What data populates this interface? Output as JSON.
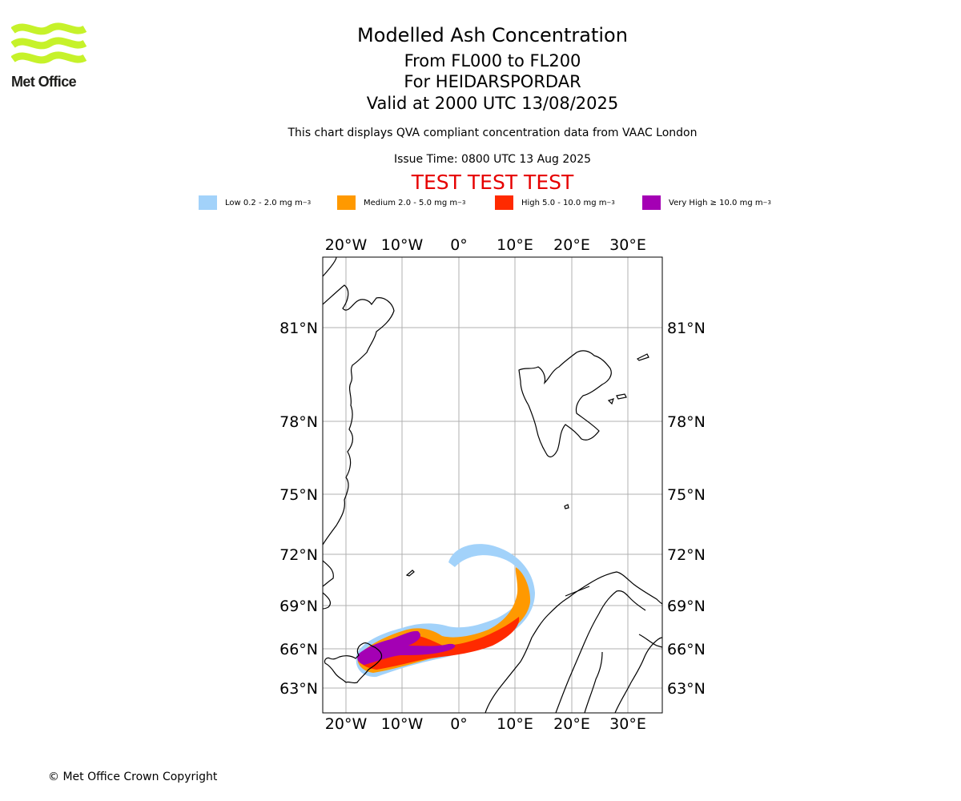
{
  "header": {
    "logo_text": "Met Office",
    "title": "Modelled Ash Concentration",
    "flight_levels": "From FL000 to FL200",
    "volcano": "For HEIDARSPORDAR",
    "valid_time": "Valid at 2000 UTC 13/08/2025",
    "description": "This chart displays QVA compliant concentration data from VAAC London",
    "issue_time": "Issue Time: 0800 UTC 13 Aug 2025",
    "test_banner": "TEST TEST TEST"
  },
  "legend": [
    {
      "label": "Low 0.2 - 2.0 mg m",
      "unit_exp": "−3",
      "color": "#a2d2fa"
    },
    {
      "label": "Medium 2.0 - 5.0 mg m",
      "unit_exp": "−3",
      "color": "#ff9900"
    },
    {
      "label": "High 5.0 - 10.0 mg m",
      "unit_exp": "−3",
      "color": "#ff2a00"
    },
    {
      "label": "Very High  ≥  10.0 mg m",
      "unit_exp": "−3",
      "color": "#a400b4"
    }
  ],
  "map": {
    "lon_labels": [
      "20°W",
      "10°W",
      "0°",
      "10°E",
      "20°E",
      "30°E"
    ],
    "lat_labels": [
      "81°N",
      "78°N",
      "75°N",
      "72°N",
      "69°N",
      "66°N",
      "63°N"
    ]
  },
  "footer": {
    "copyright": "© Met Office Crown Copyright"
  }
}
